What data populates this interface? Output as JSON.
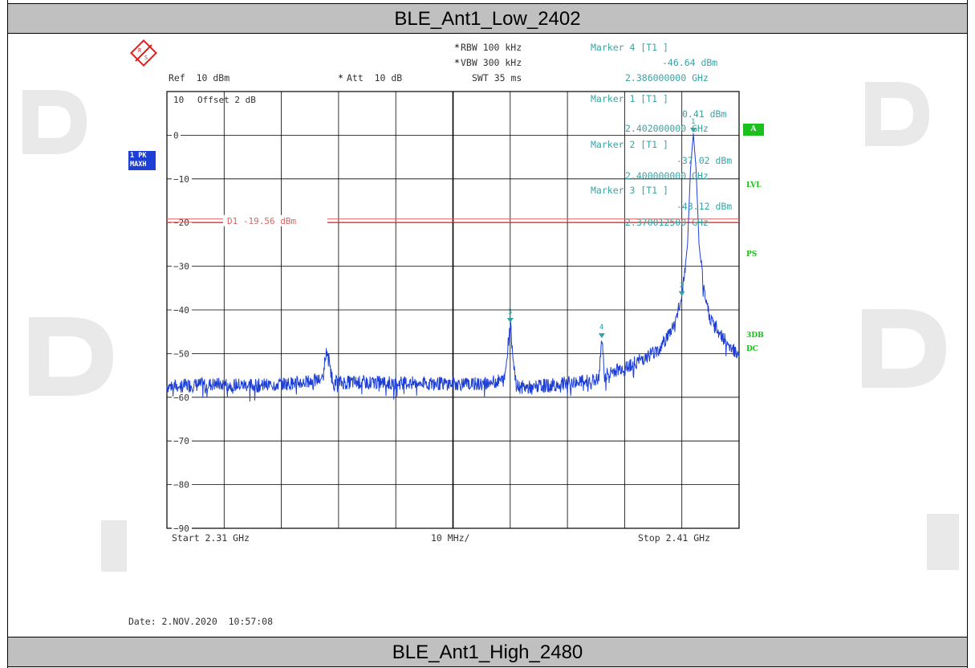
{
  "header": {
    "title": "BLE_Ant1_Low_2402"
  },
  "footer": {
    "title": "BLE_Ant1_High_2480"
  },
  "settings": {
    "rbw": "RBW 100 kHz",
    "vbw": "VBW 300 kHz",
    "ref": "Ref  10 dBm",
    "att": "Att  10 dB",
    "swt": "SWT 35 ms",
    "offset": "Offset  2 dB",
    "star": "*"
  },
  "markers_readout": {
    "m4_title": "Marker 4 [T1 ]",
    "m4_level": "-46.64 dBm",
    "m4_freq": "2.386000000 GHz",
    "m1_title": "Marker 1 [T1 ]",
    "m1_level": "0.41 dBm",
    "m1_freq": "2.402000000 GHz",
    "m2_title": "Marker 2 [T1 ]",
    "m2_level": "-37.02 dBm",
    "m2_freq": "2.400000000 GHz",
    "m3_title": "Marker 3 [T1 ]",
    "m3_level": "-43.12 dBm",
    "m3_freq": "2.370012500 GHz"
  },
  "side": {
    "trace_badge_line1": "1 PK",
    "trace_badge_line2": "MAXH",
    "a_badge": "A",
    "lvl": "LVL",
    "ps": "PS",
    "db3": "3DB",
    "dc": "DC"
  },
  "axis": {
    "start": "Start 2.31 GHz",
    "span": "10 MHz/",
    "stop": "Stop 2.41 GHz"
  },
  "date": "Date: 2.NOV.2020  10:57:08",
  "colors": {
    "trace": "#1d3fd6",
    "marker": "#2aa5a5",
    "display_line": "#e06060",
    "grid": "#000000"
  },
  "chart_data": {
    "type": "line",
    "title": "BLE_Ant1_Low_2402",
    "xlabel": "",
    "ylabel": "",
    "x_unit": "GHz",
    "y_unit": "dBm",
    "xlim": [
      2.31,
      2.41
    ],
    "ylim": [
      -90,
      10
    ],
    "y_ticks": [
      10,
      0,
      -10,
      -20,
      -30,
      -40,
      -50,
      -60,
      -70,
      -80,
      -90
    ],
    "display_line": {
      "label": "D1 -19.56 dBm",
      "value": -19.56
    },
    "series": [
      {
        "x": [
          2.31,
          2.318,
          2.326,
          2.334,
          2.337,
          2.338,
          2.339,
          2.345,
          2.355,
          2.365,
          2.369,
          2.37,
          2.371,
          2.373,
          2.38,
          2.3855,
          2.386,
          2.3865,
          2.388,
          2.392,
          2.396,
          2.398,
          2.399,
          2.4,
          2.401,
          2.4015,
          2.402,
          2.4025,
          2.403,
          2.404,
          2.405,
          2.407,
          2.409,
          2.41
        ],
        "y": [
          -57.5,
          -57,
          -57.3,
          -56.6,
          -56,
          -49,
          -56.6,
          -56.6,
          -56.8,
          -57,
          -56,
          -43.1,
          -57.5,
          -57.8,
          -56.8,
          -56,
          -46.6,
          -55,
          -54,
          -52,
          -49,
          -45,
          -42,
          -37,
          -25,
          -8,
          0.4,
          -8,
          -25,
          -37,
          -42,
          -46,
          -49,
          -50
        ]
      }
    ],
    "markers": [
      {
        "label": "1",
        "x": 2.402,
        "y": 0.41
      },
      {
        "label": "2",
        "x": 2.4,
        "y": -37.02
      },
      {
        "label": "3",
        "x": 2.3700125,
        "y": -43.12
      },
      {
        "label": "4",
        "x": 2.386,
        "y": -46.64
      }
    ]
  }
}
